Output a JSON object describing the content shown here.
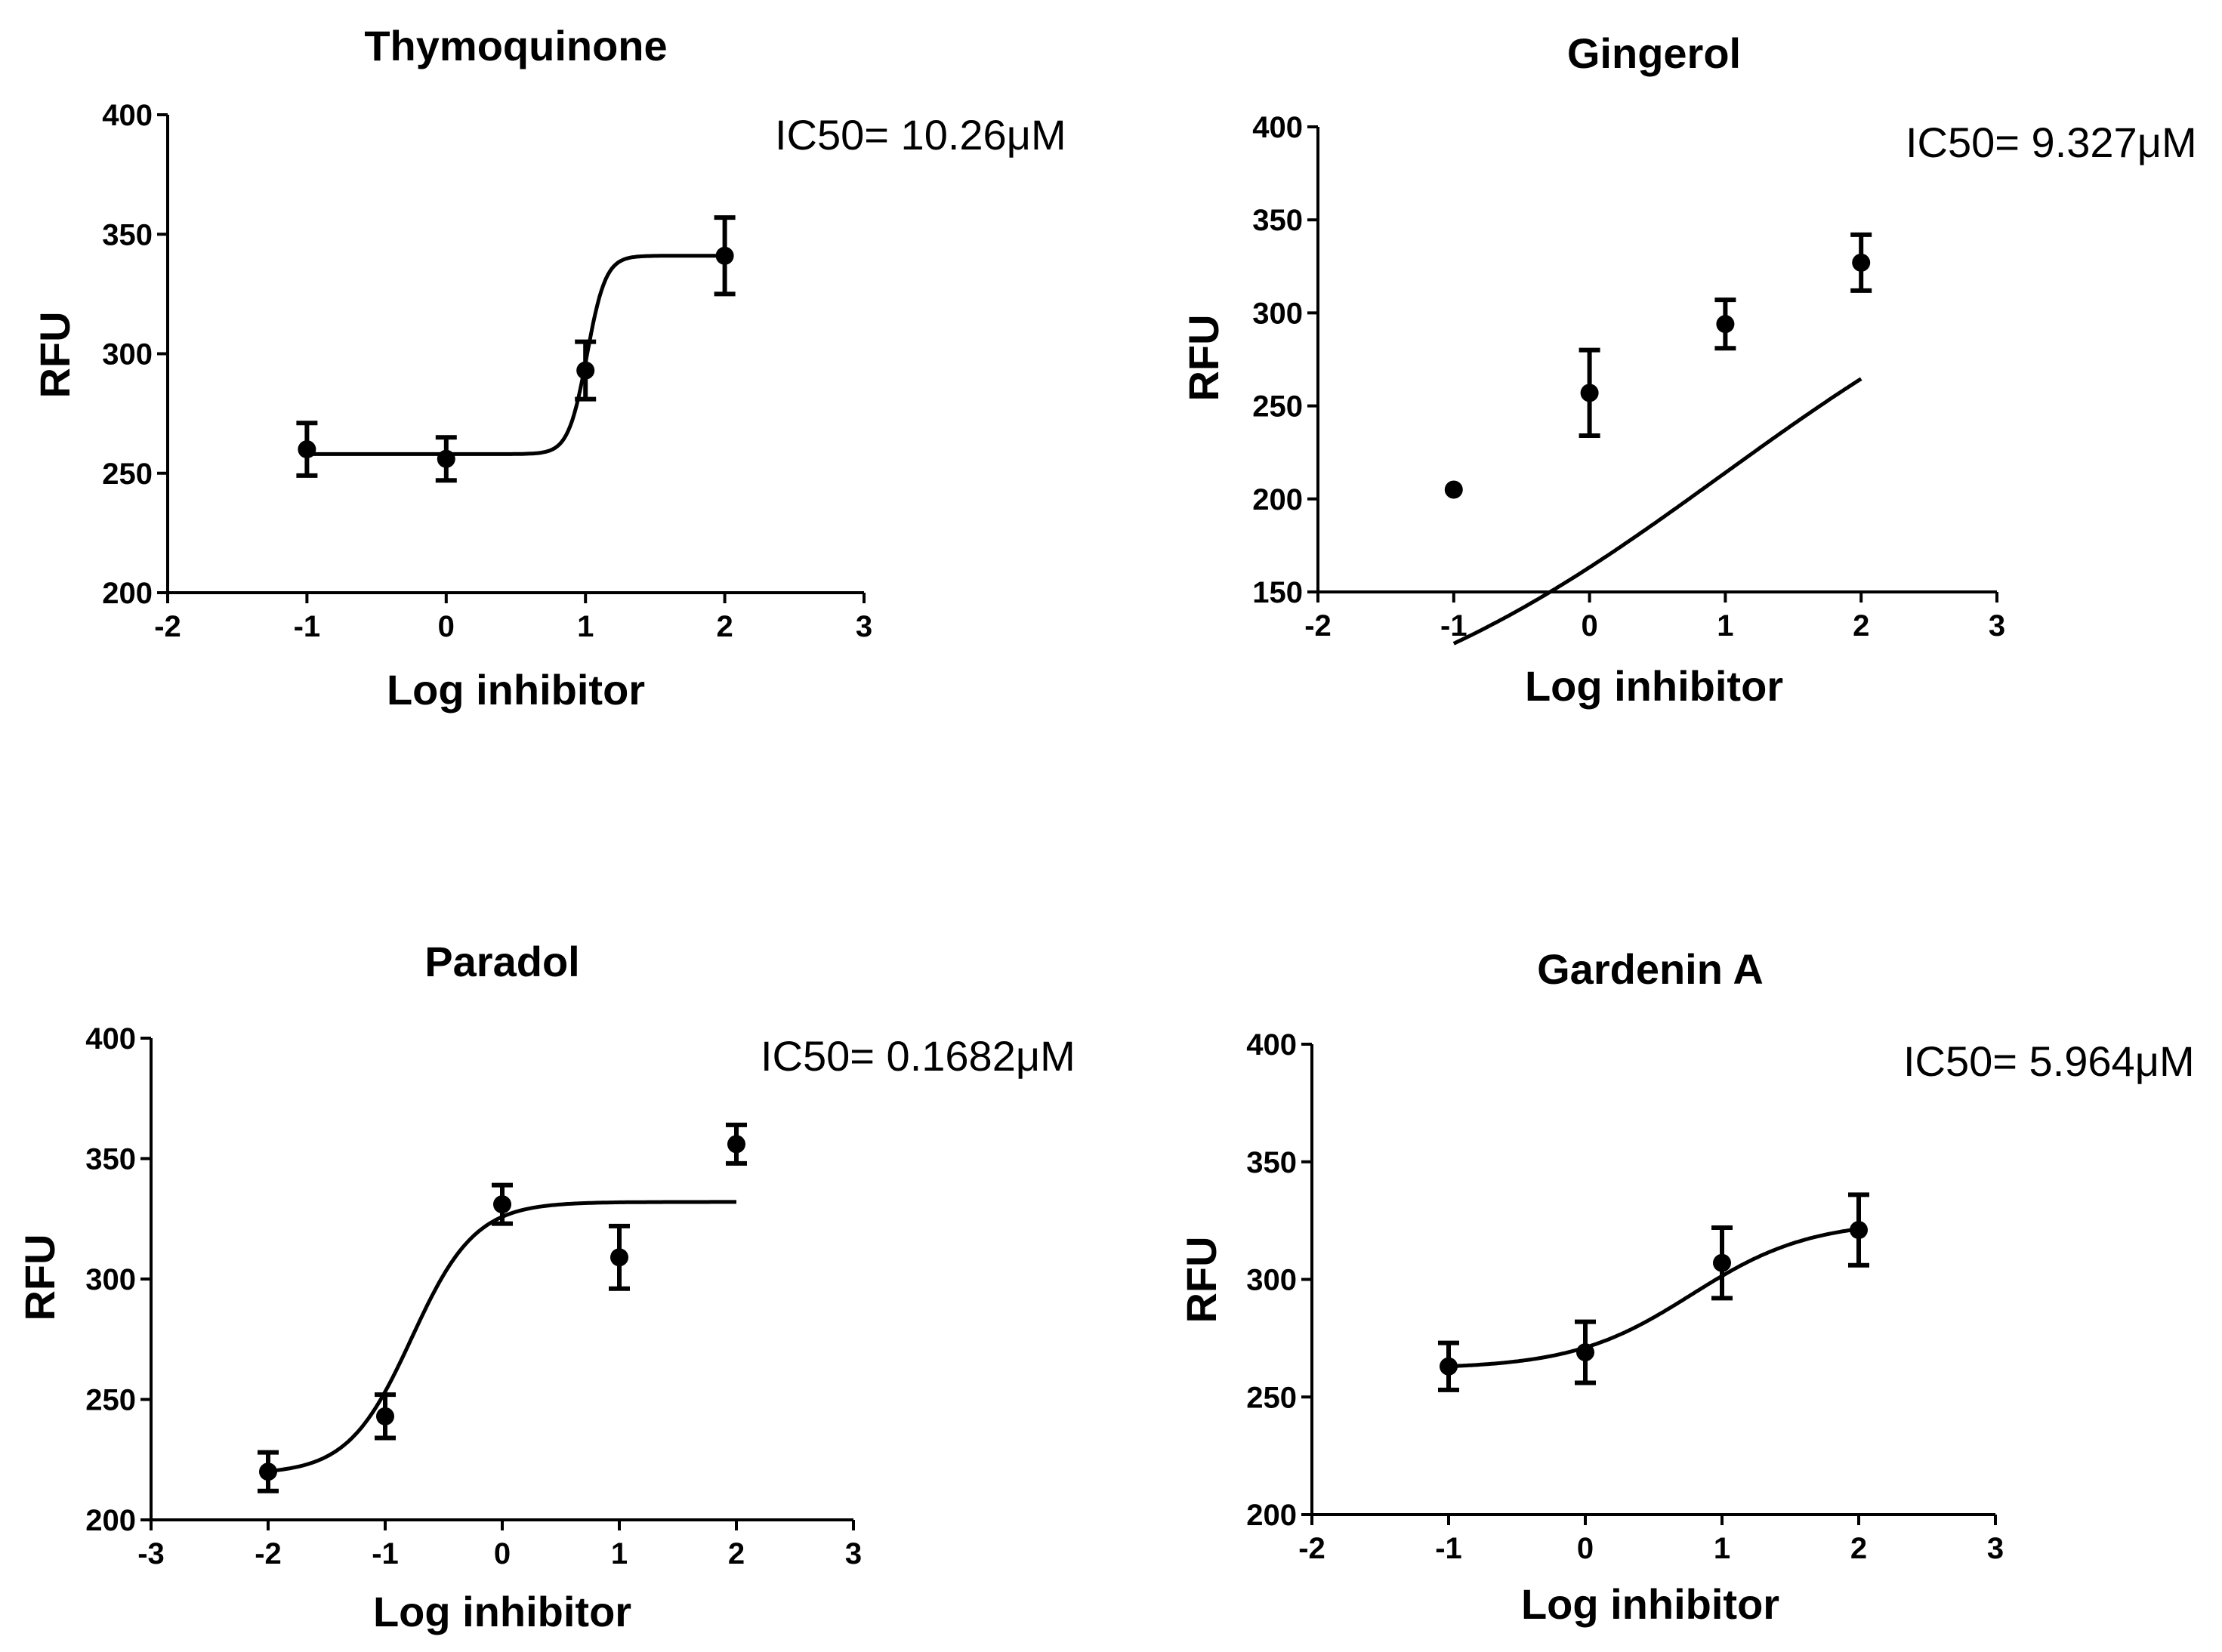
{
  "figure": {
    "background": "#ffffff",
    "ink": "#000000"
  },
  "chart_data": [
    {
      "type": "scatter",
      "title": "Thymoquinone",
      "annotation": "IC50= 10.26μM",
      "xlabel": "Log inhibitor",
      "ylabel": "RFU",
      "xlim": [
        -2,
        3
      ],
      "ylim": [
        200,
        400
      ],
      "xticks": [
        "-2",
        "-1",
        "0",
        "1",
        "2",
        "3"
      ],
      "yticks": [
        "200",
        "250",
        "300",
        "350",
        "400"
      ],
      "points": [
        {
          "x": -1,
          "y": 260,
          "err": 11
        },
        {
          "x": 0,
          "y": 256,
          "err": 9
        },
        {
          "x": 1,
          "y": 293,
          "err": 12
        },
        {
          "x": 2,
          "y": 341,
          "err": 16
        }
      ],
      "fit": {
        "bottom": 258,
        "top": 341,
        "logIC50": 1.011,
        "hill": 6.5,
        "xrange": [
          -1,
          2
        ]
      }
    },
    {
      "type": "scatter",
      "title": "Gingerol",
      "annotation": "IC50= 9.327μM",
      "xlabel": "Log inhibitor",
      "ylabel": "RFU",
      "xlim": [
        -2,
        3
      ],
      "ylim": [
        150,
        400
      ],
      "xticks": [
        "-2",
        "-1",
        "0",
        "1",
        "2",
        "3"
      ],
      "yticks": [
        "150",
        "200",
        "250",
        "300",
        "350",
        "400"
      ],
      "points": [
        {
          "x": -1,
          "y": 205,
          "err": 0
        },
        {
          "x": 0,
          "y": 257,
          "err": 23
        },
        {
          "x": 1,
          "y": 294,
          "err": 13
        },
        {
          "x": 2,
          "y": 327,
          "err": 15
        }
      ],
      "fit": {
        "bottom": 60,
        "top": 365,
        "logIC50": 0.97,
        "hill": 0.3,
        "xrange": [
          -1,
          2
        ]
      }
    },
    {
      "type": "scatter",
      "title": "Paradol",
      "annotation": "IC50= 0.1682μM",
      "xlabel": "Log inhibitor",
      "ylabel": "RFU",
      "xlim": [
        -3,
        3
      ],
      "ylim": [
        200,
        400
      ],
      "xticks": [
        "-3",
        "-2",
        "-1",
        "0",
        "1",
        "2",
        "3"
      ],
      "yticks": [
        "200",
        "250",
        "300",
        "350",
        "400"
      ],
      "points": [
        {
          "x": -2,
          "y": 220,
          "err": 8
        },
        {
          "x": -1,
          "y": 243,
          "err": 9
        },
        {
          "x": 0,
          "y": 331,
          "err": 8
        },
        {
          "x": 1,
          "y": 309,
          "err": 13
        },
        {
          "x": 2,
          "y": 356,
          "err": 8
        }
      ],
      "fit": {
        "bottom": 219,
        "top": 332,
        "logIC50": -0.774,
        "hill": 1.6,
        "xrange": [
          -2,
          2
        ]
      }
    },
    {
      "type": "scatter",
      "title": "Gardenin A",
      "annotation": "IC50= 5.964μM",
      "xlabel": "Log inhibitor",
      "ylabel": "RFU",
      "xlim": [
        -2,
        3
      ],
      "ylim": [
        200,
        400
      ],
      "xticks": [
        "-2",
        "-1",
        "0",
        "1",
        "2",
        "3"
      ],
      "yticks": [
        "200",
        "250",
        "300",
        "350",
        "400"
      ],
      "points": [
        {
          "x": -1,
          "y": 263,
          "err": 10
        },
        {
          "x": 0,
          "y": 269,
          "err": 13
        },
        {
          "x": 1,
          "y": 307,
          "err": 15
        },
        {
          "x": 2,
          "y": 321,
          "err": 15
        }
      ],
      "fit": {
        "bottom": 262,
        "top": 325,
        "logIC50": 0.776,
        "hill": 1.0,
        "xrange": [
          -1,
          2
        ]
      }
    }
  ]
}
